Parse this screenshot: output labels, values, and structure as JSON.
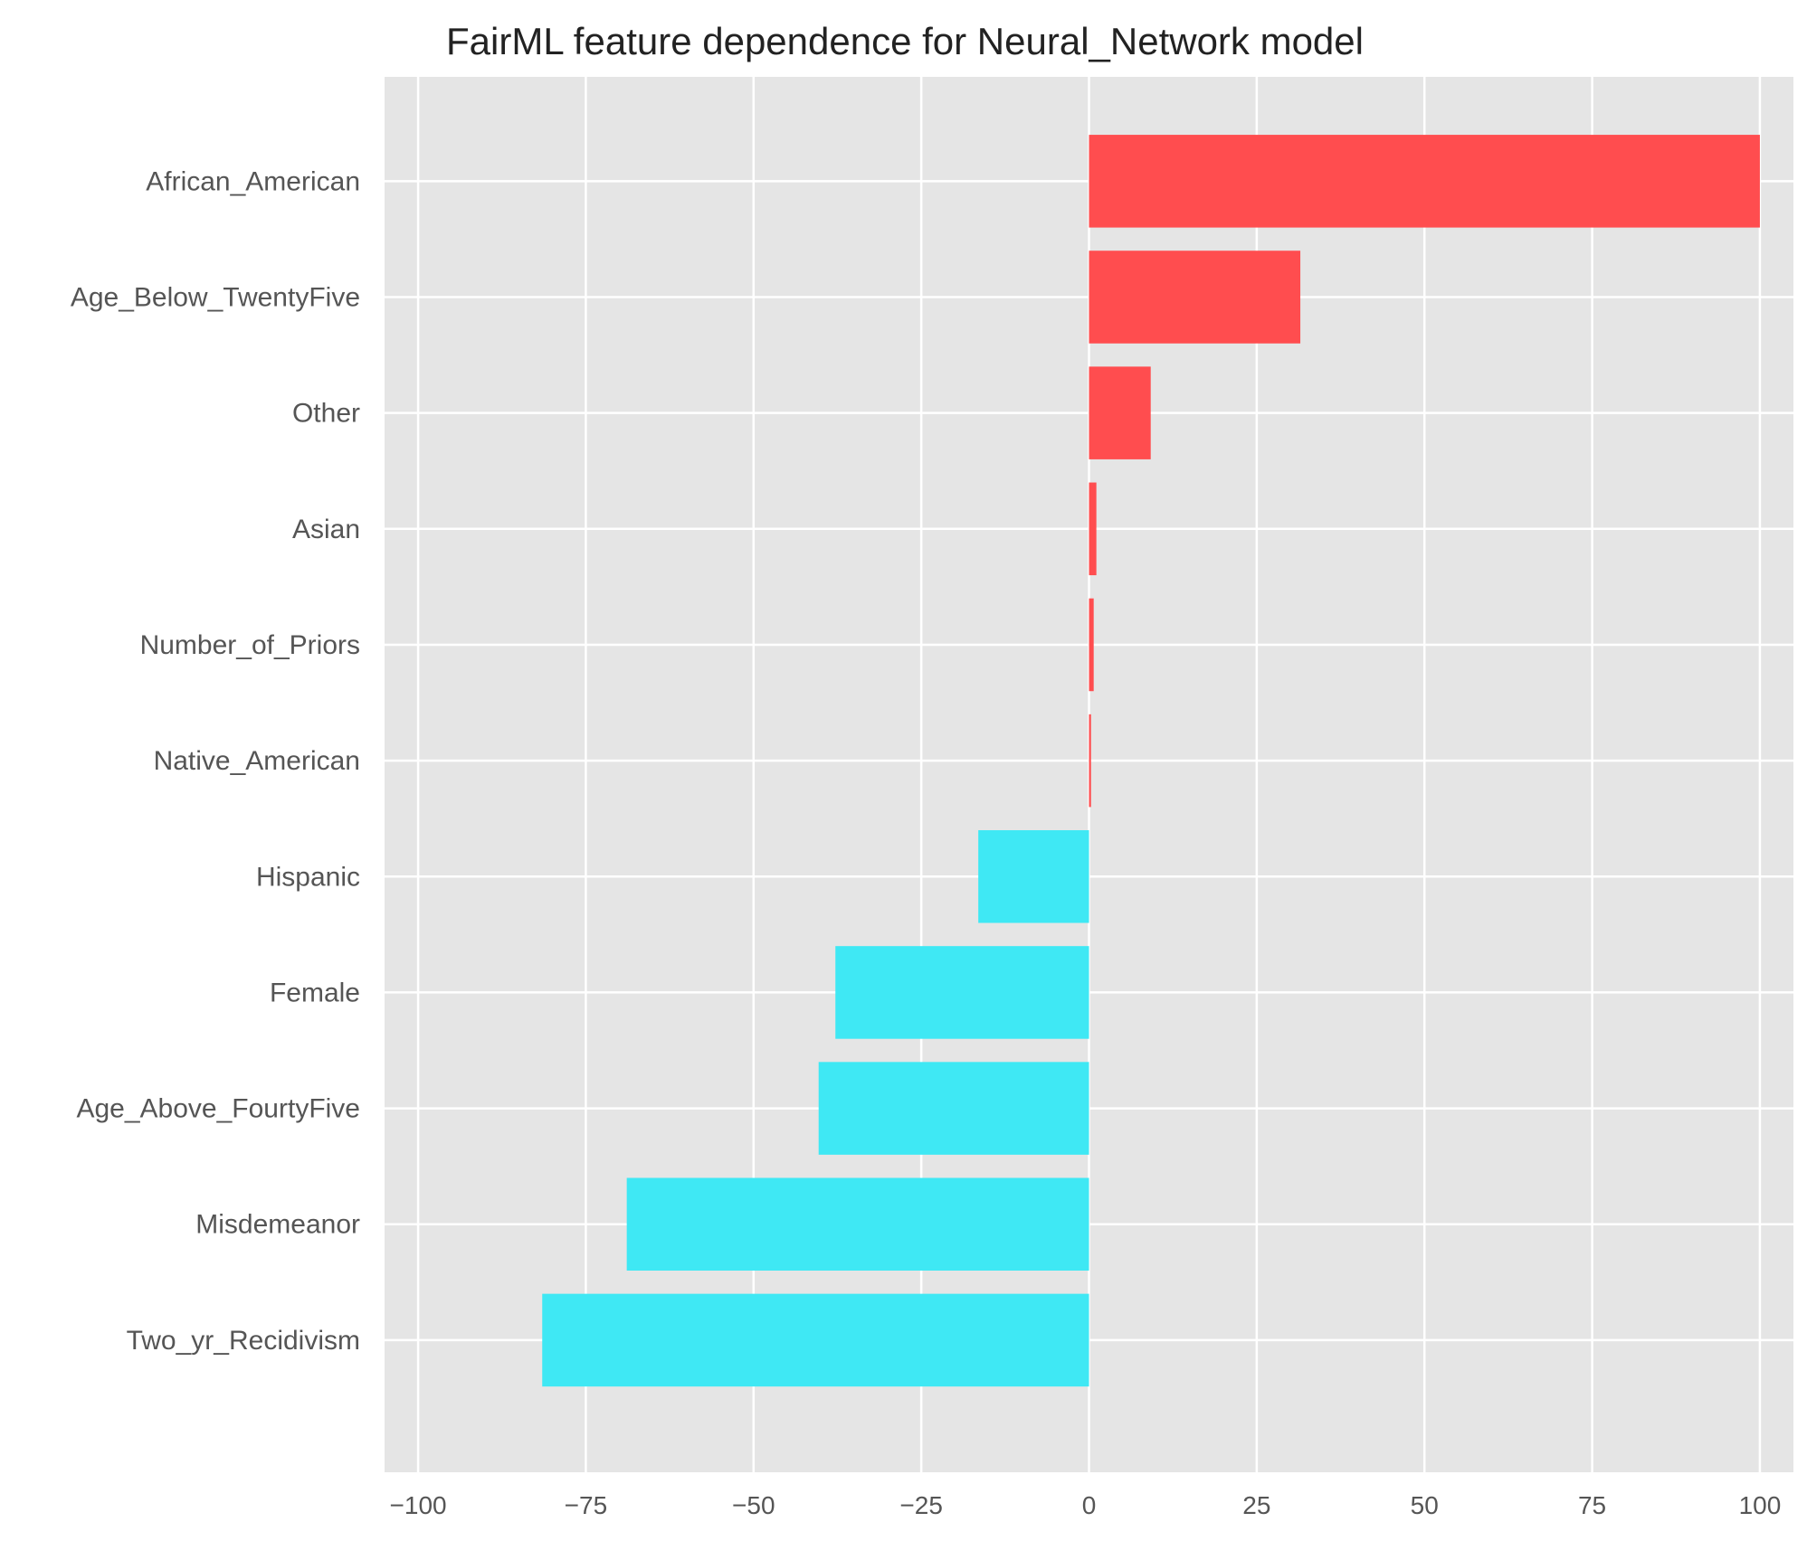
{
  "chart_data": {
    "type": "bar",
    "orientation": "horizontal",
    "title": "FairML feature dependence for Neural_Network model",
    "xlabel": "",
    "ylabel": "",
    "xlim": [
      -105,
      105
    ],
    "xticks": [
      -100,
      -75,
      -50,
      -25,
      0,
      25,
      50,
      75,
      100
    ],
    "xtick_labels": [
      "−100",
      "−75",
      "−50",
      "−25",
      "0",
      "25",
      "50",
      "75",
      "100"
    ],
    "categories": [
      "African_American",
      "Age_Below_TwentyFive",
      "Other",
      "Asian",
      "Number_of_Priors",
      "Native_American",
      "Hispanic",
      "Female",
      "Age_Above_FourtyFive",
      "Misdemeanor",
      "Two_yr_Recidivism"
    ],
    "values": [
      100,
      31.5,
      9.2,
      1.1,
      0.7,
      0.3,
      -16.5,
      -37.8,
      -40.3,
      -68.9,
      -81.5
    ],
    "grid": true,
    "background": "#e5e5e5",
    "grid_color": "#ffffff",
    "positive_color": "#ff4d4f",
    "negative_color": "#3fe8f4"
  }
}
